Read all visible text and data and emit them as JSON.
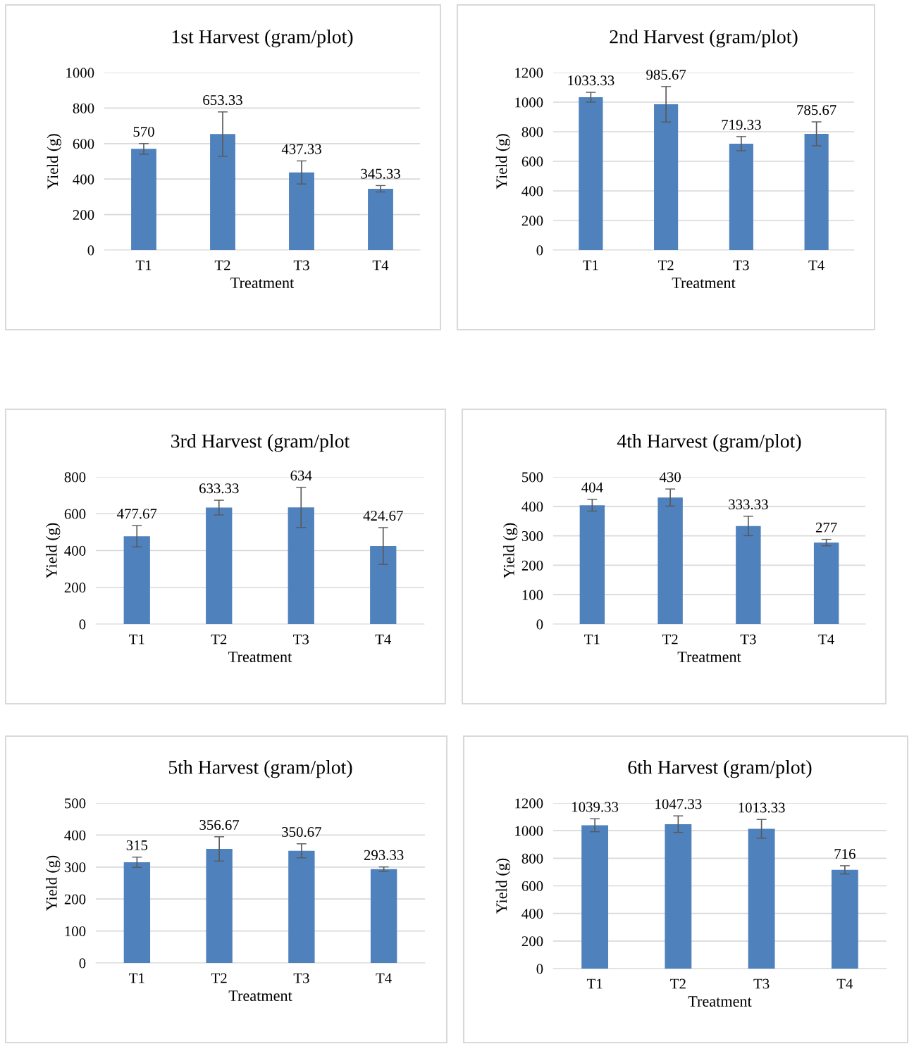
{
  "chart_data": [
    {
      "type": "bar",
      "title": "1st Harvest (gram/plot)",
      "xlabel": "Treatment",
      "ylabel": "Yield (g)",
      "categories": [
        "T1",
        "T2",
        "T3",
        "T4"
      ],
      "values": [
        570,
        653.33,
        437.33,
        345.33
      ],
      "errors": [
        30,
        125,
        65,
        18
      ],
      "color": "#4f81bd",
      "ylim": [
        0,
        1000
      ],
      "yticks": [
        0,
        200,
        400,
        600,
        800,
        1000
      ],
      "grid": "y",
      "data_labels": true,
      "legend": false
    },
    {
      "type": "bar",
      "title": "2nd Harvest (gram/plot)",
      "xlabel": "Treatment",
      "ylabel": "Yield (g)",
      "categories": [
        "T1",
        "T2",
        "T3",
        "T4"
      ],
      "values": [
        1033.33,
        985.67,
        719.33,
        785.67
      ],
      "errors": [
        33,
        120,
        48,
        81
      ],
      "color": "#4f81bd",
      "ylim": [
        0,
        1200
      ],
      "yticks": [
        0,
        200,
        400,
        600,
        800,
        1000,
        1200
      ],
      "grid": "y",
      "data_labels": true,
      "legend": false
    },
    {
      "type": "bar",
      "title": "3rd Harvest (gram/plot",
      "xlabel": "Treatment",
      "ylabel": "Yield (g)",
      "categories": [
        "T1",
        "T2",
        "T3",
        "T4"
      ],
      "values": [
        477.67,
        633.33,
        634,
        424.67
      ],
      "errors": [
        58,
        40,
        109,
        100
      ],
      "color": "#4f81bd",
      "ylim": [
        0,
        800
      ],
      "yticks": [
        0,
        200,
        400,
        600,
        800
      ],
      "grid": "y",
      "data_labels": true,
      "legend": false
    },
    {
      "type": "bar",
      "title": "4th Harvest (gram/plot)",
      "xlabel": "Treatment",
      "ylabel": "Yield (g)",
      "categories": [
        "T1",
        "T2",
        "T3",
        "T4"
      ],
      "values": [
        404,
        430,
        333.33,
        277
      ],
      "errors": [
        20,
        29,
        33,
        11
      ],
      "color": "#4f81bd",
      "ylim": [
        0,
        500
      ],
      "yticks": [
        0,
        100,
        200,
        300,
        400,
        500
      ],
      "grid": "y",
      "data_labels": true,
      "legend": false
    },
    {
      "type": "bar",
      "title": "5th Harvest (gram/plot)",
      "xlabel": "Treatment",
      "ylabel": "Yield (g)",
      "categories": [
        "T1",
        "T2",
        "T3",
        "T4"
      ],
      "values": [
        315,
        356.67,
        350.67,
        293.33
      ],
      "errors": [
        16,
        38,
        22,
        7
      ],
      "color": "#4f81bd",
      "ylim": [
        0,
        500
      ],
      "yticks": [
        0,
        100,
        200,
        300,
        400,
        500
      ],
      "grid": "y",
      "data_labels": true,
      "legend": false
    },
    {
      "type": "bar",
      "title": "6th Harvest (gram/plot)",
      "xlabel": "Treatment",
      "ylabel": "Yield (g)",
      "categories": [
        "T1",
        "T2",
        "T3",
        "T4"
      ],
      "values": [
        1039.33,
        1047.33,
        1013.33,
        716
      ],
      "errors": [
        47,
        60,
        68,
        30
      ],
      "color": "#4f81bd",
      "ylim": [
        0,
        1200
      ],
      "yticks": [
        0,
        200,
        400,
        600,
        800,
        1000,
        1200
      ],
      "grid": "y",
      "data_labels": true,
      "legend": false
    }
  ]
}
